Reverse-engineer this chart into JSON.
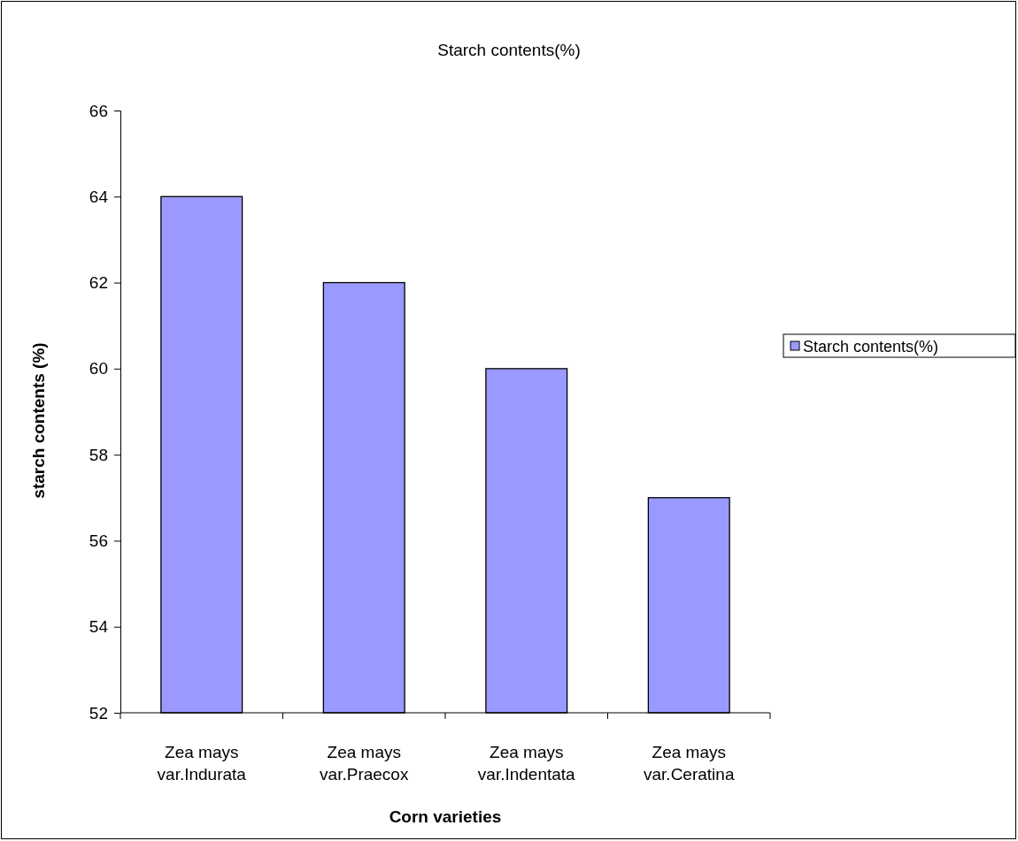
{
  "chart_data": {
    "type": "bar",
    "title": "Starch contents(%)",
    "xlabel": "Corn varieties",
    "ylabel": "starch contents (%)",
    "categories": [
      "Zea mays var.Indurata",
      "Zea mays var.Praecox",
      "Zea mays var.Indentata",
      "Zea mays var.Ceratina"
    ],
    "series": [
      {
        "name": "Starch contents(%)",
        "color": "#9999ff",
        "values": [
          64,
          62,
          60,
          57
        ]
      }
    ],
    "ylim": [
      52,
      66
    ],
    "yticks": [
      52,
      54,
      56,
      58,
      60,
      62,
      64,
      66
    ],
    "grid": false,
    "legend": "right"
  }
}
